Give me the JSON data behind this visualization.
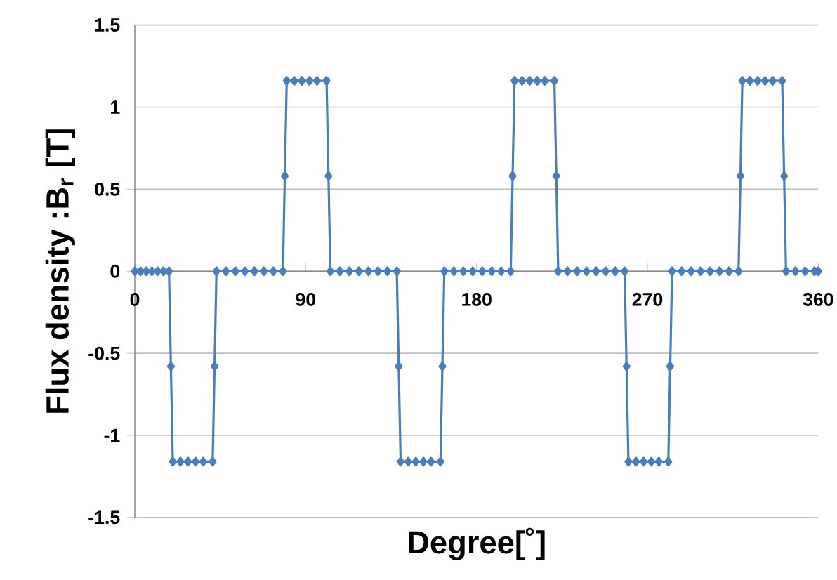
{
  "chart_data": {
    "type": "line",
    "xlabel": "Degree[˚]",
    "ylabel": "Flux density :B$_{r}$ [T]",
    "xlim": [
      0,
      360
    ],
    "xticks": [
      0,
      90,
      180,
      270,
      360
    ],
    "ylim": [
      -1.5,
      1.5
    ],
    "yticks": [
      -1.5,
      -1,
      -0.5,
      0,
      0.5,
      1,
      1.5
    ],
    "grid": "y",
    "marker": "diamond",
    "line_style": "solid",
    "series": [
      {
        "color": "#4a7ebb",
        "x": [
          0,
          3,
          6,
          9,
          12,
          15,
          18,
          19,
          20,
          24,
          28,
          32,
          36,
          41,
          42,
          43,
          48,
          53,
          58,
          63,
          68,
          73,
          78,
          79,
          80,
          84,
          88,
          92,
          96,
          101,
          102,
          103,
          108,
          113,
          118,
          123,
          128,
          133,
          138,
          139,
          140,
          144,
          148,
          152,
          156,
          161,
          162,
          163,
          168,
          173,
          178,
          183,
          188,
          193,
          198,
          199,
          200,
          204,
          208,
          212,
          216,
          221,
          222,
          223,
          228,
          233,
          238,
          243,
          248,
          253,
          258,
          259,
          260,
          264,
          268,
          272,
          276,
          281,
          282,
          283,
          288,
          293,
          298,
          303,
          308,
          313,
          318,
          319,
          320,
          324,
          328,
          332,
          336,
          341,
          342,
          343,
          348,
          353,
          358,
          360
        ],
        "values": [
          0,
          0,
          0,
          0,
          0,
          0,
          0,
          -0.58,
          -1.16,
          -1.16,
          -1.16,
          -1.16,
          -1.16,
          -1.16,
          -0.58,
          0,
          0,
          0,
          0,
          0,
          0,
          0,
          0,
          0.58,
          1.16,
          1.16,
          1.16,
          1.16,
          1.16,
          1.16,
          0.58,
          0,
          0,
          0,
          0,
          0,
          0,
          0,
          0,
          -0.58,
          -1.16,
          -1.16,
          -1.16,
          -1.16,
          -1.16,
          -1.16,
          -0.58,
          0,
          0,
          0,
          0,
          0,
          0,
          0,
          0,
          0.58,
          1.16,
          1.16,
          1.16,
          1.16,
          1.16,
          1.16,
          0.58,
          0,
          0,
          0,
          0,
          0,
          0,
          0,
          0,
          -0.58,
          -1.16,
          -1.16,
          -1.16,
          -1.16,
          -1.16,
          -1.16,
          -0.58,
          0,
          0,
          0,
          0,
          0,
          0,
          0,
          0,
          0.58,
          1.16,
          1.16,
          1.16,
          1.16,
          1.16,
          1.16,
          0.58,
          0,
          0,
          0,
          0,
          0
        ]
      }
    ]
  }
}
